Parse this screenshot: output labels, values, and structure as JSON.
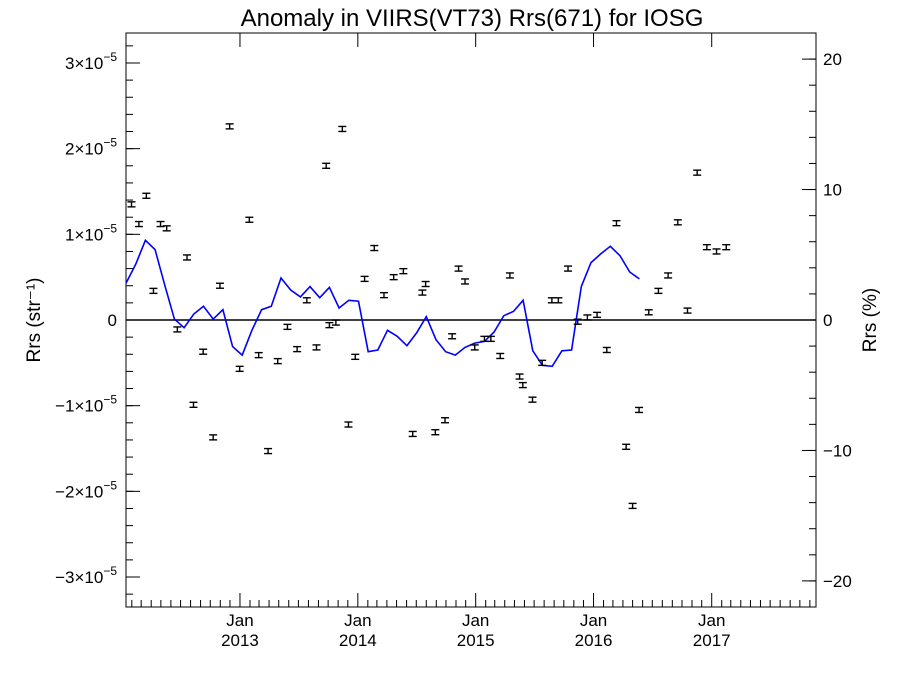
{
  "chart_data": {
    "type": "line",
    "title": "Anomaly in VIIRS(VT73) Rrs(671) for IOSG",
    "ylabel": "Rrs (str⁻¹)",
    "ylabel_right": "Rrs (%)",
    "ylim": [
      -3.35e-05,
      3.35e-05
    ],
    "ylim_right": [
      -22.0,
      22.0
    ],
    "xlim": [
      "2012-01-14",
      "2017-11-20"
    ],
    "grid": false,
    "y_ticks": [
      {
        "value": 3e-05,
        "mantissa": "3",
        "exp": "−5"
      },
      {
        "value": 2e-05,
        "mantissa": "2",
        "exp": "−5"
      },
      {
        "value": 1e-05,
        "mantissa": "1",
        "exp": "−5"
      },
      {
        "value": 0,
        "mantissa": "0",
        "exp": ""
      },
      {
        "value": -1e-05,
        "mantissa": "−1",
        "exp": "−5"
      },
      {
        "value": -2e-05,
        "mantissa": "−2",
        "exp": "−5"
      },
      {
        "value": -3e-05,
        "mantissa": "−3",
        "exp": "−5"
      }
    ],
    "y_right_ticks": [
      {
        "value": 20,
        "label": "20"
      },
      {
        "value": 10,
        "label": "10"
      },
      {
        "value": 0,
        "label": "0"
      },
      {
        "value": -10,
        "label": "−10"
      },
      {
        "value": -20,
        "label": "−20"
      }
    ],
    "x_ticks": [
      {
        "date": "2013-01-01",
        "month": "Jan",
        "year": "2013"
      },
      {
        "date": "2014-01-01",
        "month": "Jan",
        "year": "2014"
      },
      {
        "date": "2015-01-01",
        "month": "Jan",
        "year": "2015"
      },
      {
        "date": "2016-01-01",
        "month": "Jan",
        "year": "2016"
      },
      {
        "date": "2017-01-01",
        "month": "Jan",
        "year": "2017"
      }
    ],
    "reference_line_y": 0,
    "series": [
      {
        "kind": "scatter-errorbar",
        "color": "#000000",
        "points": [
          {
            "x": "2012-01-31",
            "y": 1.35e-05
          },
          {
            "x": "2012-02-23",
            "y": 1.12e-05
          },
          {
            "x": "2012-03-17",
            "y": 1.45e-05
          },
          {
            "x": "2012-04-08",
            "y": 3.4e-06
          },
          {
            "x": "2012-04-30",
            "y": 1.12e-05
          },
          {
            "x": "2012-05-19",
            "y": 1.07e-05
          },
          {
            "x": "2012-06-21",
            "y": -1.1e-06
          },
          {
            "x": "2012-07-21",
            "y": 7.3e-06
          },
          {
            "x": "2012-08-10",
            "y": -9.9e-06
          },
          {
            "x": "2012-09-09",
            "y": -3.7e-06
          },
          {
            "x": "2012-10-10",
            "y": -1.37e-05
          },
          {
            "x": "2012-10-31",
            "y": 4e-06
          },
          {
            "x": "2012-11-30",
            "y": 2.26e-05
          },
          {
            "x": "2012-12-31",
            "y": -5.7e-06
          },
          {
            "x": "2013-01-30",
            "y": 1.17e-05
          },
          {
            "x": "2013-02-28",
            "y": -4.1e-06
          },
          {
            "x": "2013-03-29",
            "y": -1.53e-05
          },
          {
            "x": "2013-04-28",
            "y": -4.8e-06
          },
          {
            "x": "2013-05-28",
            "y": -8e-07
          },
          {
            "x": "2013-06-27",
            "y": -3.4e-06
          },
          {
            "x": "2013-07-27",
            "y": 2.3e-06
          },
          {
            "x": "2013-08-26",
            "y": -3.2e-06
          },
          {
            "x": "2013-09-25",
            "y": 1.8e-05
          },
          {
            "x": "2013-10-05",
            "y": -6e-07
          },
          {
            "x": "2013-10-25",
            "y": -3e-07
          },
          {
            "x": "2013-11-14",
            "y": 2.23e-05
          },
          {
            "x": "2013-12-03",
            "y": -1.22e-05
          },
          {
            "x": "2013-12-24",
            "y": -4.3e-06
          },
          {
            "x": "2014-01-22",
            "y": 4.8e-06
          },
          {
            "x": "2014-02-21",
            "y": 8.4e-06
          },
          {
            "x": "2014-03-23",
            "y": 2.9e-06
          },
          {
            "x": "2014-04-22",
            "y": 5e-06
          },
          {
            "x": "2014-05-22",
            "y": 5.7e-06
          },
          {
            "x": "2014-06-20",
            "y": -1.33e-05
          },
          {
            "x": "2014-07-20",
            "y": 3.2e-06
          },
          {
            "x": "2014-07-30",
            "y": 4.2e-06
          },
          {
            "x": "2014-08-29",
            "y": -1.31e-05
          },
          {
            "x": "2014-09-28",
            "y": -1.17e-05
          },
          {
            "x": "2014-10-20",
            "y": -1.9e-06
          },
          {
            "x": "2014-11-09",
            "y": 6e-06
          },
          {
            "x": "2014-11-29",
            "y": 4.5e-06
          },
          {
            "x": "2014-12-29",
            "y": -3.2e-06
          },
          {
            "x": "2015-01-28",
            "y": -2.2e-06
          },
          {
            "x": "2015-02-17",
            "y": -2.2e-06
          },
          {
            "x": "2015-03-18",
            "y": -4.2e-06
          },
          {
            "x": "2015-04-17",
            "y": 5.2e-06
          },
          {
            "x": "2015-05-17",
            "y": -6.6e-06
          },
          {
            "x": "2015-05-27",
            "y": -7.6e-06
          },
          {
            "x": "2015-06-26",
            "y": -9.3e-06
          },
          {
            "x": "2015-07-26",
            "y": -5e-06
          },
          {
            "x": "2015-08-25",
            "y": 2.3e-06
          },
          {
            "x": "2015-09-14",
            "y": 2.3e-06
          },
          {
            "x": "2015-10-14",
            "y": 6e-06
          },
          {
            "x": "2015-11-13",
            "y": -2e-07
          },
          {
            "x": "2015-12-13",
            "y": 3e-07
          },
          {
            "x": "2016-01-12",
            "y": 6e-07
          },
          {
            "x": "2016-02-11",
            "y": -3.5e-06
          },
          {
            "x": "2016-03-12",
            "y": 1.13e-05
          },
          {
            "x": "2016-04-11",
            "y": -1.48e-05
          },
          {
            "x": "2016-05-01",
            "y": -2.17e-05
          },
          {
            "x": "2016-05-21",
            "y": -1.05e-05
          },
          {
            "x": "2016-06-20",
            "y": 9e-07
          },
          {
            "x": "2016-07-20",
            "y": 3.4e-06
          },
          {
            "x": "2016-08-19",
            "y": 5.2e-06
          },
          {
            "x": "2016-09-18",
            "y": 1.14e-05
          },
          {
            "x": "2016-10-18",
            "y": 1.1e-06
          },
          {
            "x": "2016-11-17",
            "y": 1.72e-05
          },
          {
            "x": "2016-12-17",
            "y": 8.5e-06
          },
          {
            "x": "2017-01-16",
            "y": 8e-06
          },
          {
            "x": "2017-02-15",
            "y": 8.5e-06
          }
        ]
      },
      {
        "kind": "line",
        "color": "#0000ff",
        "points": [
          {
            "x": "2012-01-14",
            "y": 4.3e-06
          },
          {
            "x": "2012-02-13",
            "y": 6.5e-06
          },
          {
            "x": "2012-03-14",
            "y": 9.3e-06
          },
          {
            "x": "2012-04-13",
            "y": 8.2e-06
          },
          {
            "x": "2012-05-13",
            "y": 4.1e-06
          },
          {
            "x": "2012-06-12",
            "y": 1e-07
          },
          {
            "x": "2012-07-12",
            "y": -9e-07
          },
          {
            "x": "2012-08-11",
            "y": 7e-07
          },
          {
            "x": "2012-09-10",
            "y": 1.6e-06
          },
          {
            "x": "2012-10-10",
            "y": 1e-07
          },
          {
            "x": "2012-11-09",
            "y": 1.2e-06
          },
          {
            "x": "2012-12-09",
            "y": -3.1e-06
          },
          {
            "x": "2013-01-08",
            "y": -4.1e-06
          },
          {
            "x": "2013-02-07",
            "y": -1.2e-06
          },
          {
            "x": "2013-03-09",
            "y": 1.2e-06
          },
          {
            "x": "2013-04-08",
            "y": 1.6e-06
          },
          {
            "x": "2013-05-08",
            "y": 4.9e-06
          },
          {
            "x": "2013-06-07",
            "y": 3.5e-06
          },
          {
            "x": "2013-07-07",
            "y": 2.7e-06
          },
          {
            "x": "2013-08-06",
            "y": 3.9e-06
          },
          {
            "x": "2013-09-05",
            "y": 2.6e-06
          },
          {
            "x": "2013-10-05",
            "y": 3.8e-06
          },
          {
            "x": "2013-11-04",
            "y": 1.4e-06
          },
          {
            "x": "2013-12-04",
            "y": 2.3e-06
          },
          {
            "x": "2014-01-03",
            "y": 2.2e-06
          },
          {
            "x": "2014-02-02",
            "y": -3.7e-06
          },
          {
            "x": "2014-03-04",
            "y": -3.5e-06
          },
          {
            "x": "2014-04-03",
            "y": -1.2e-06
          },
          {
            "x": "2014-05-03",
            "y": -1.9e-06
          },
          {
            "x": "2014-06-02",
            "y": -3e-06
          },
          {
            "x": "2014-07-02",
            "y": -1.5e-06
          },
          {
            "x": "2014-08-01",
            "y": 4e-07
          },
          {
            "x": "2014-08-31",
            "y": -2.3e-06
          },
          {
            "x": "2014-09-30",
            "y": -3.7e-06
          },
          {
            "x": "2014-10-30",
            "y": -4.1e-06
          },
          {
            "x": "2014-11-29",
            "y": -3.2e-06
          },
          {
            "x": "2014-12-29",
            "y": -2.7e-06
          },
          {
            "x": "2015-01-28",
            "y": -2.5e-06
          },
          {
            "x": "2015-02-27",
            "y": -1.4e-06
          },
          {
            "x": "2015-03-29",
            "y": 5e-07
          },
          {
            "x": "2015-04-28",
            "y": 1e-06
          },
          {
            "x": "2015-05-28",
            "y": 2.3e-06
          },
          {
            "x": "2015-06-27",
            "y": -3.6e-06
          },
          {
            "x": "2015-07-27",
            "y": -5.3e-06
          },
          {
            "x": "2015-08-26",
            "y": -5.4e-06
          },
          {
            "x": "2015-09-25",
            "y": -3.6e-06
          },
          {
            "x": "2015-10-25",
            "y": -3.5e-06
          },
          {
            "x": "2015-11-24",
            "y": 3.9e-06
          },
          {
            "x": "2015-12-24",
            "y": 6.7e-06
          },
          {
            "x": "2016-01-23",
            "y": 7.7e-06
          },
          {
            "x": "2016-02-22",
            "y": 8.6e-06
          },
          {
            "x": "2016-03-23",
            "y": 7.5e-06
          },
          {
            "x": "2016-04-22",
            "y": 5.6e-06
          },
          {
            "x": "2016-05-22",
            "y": 4.8e-06
          }
        ]
      }
    ]
  }
}
